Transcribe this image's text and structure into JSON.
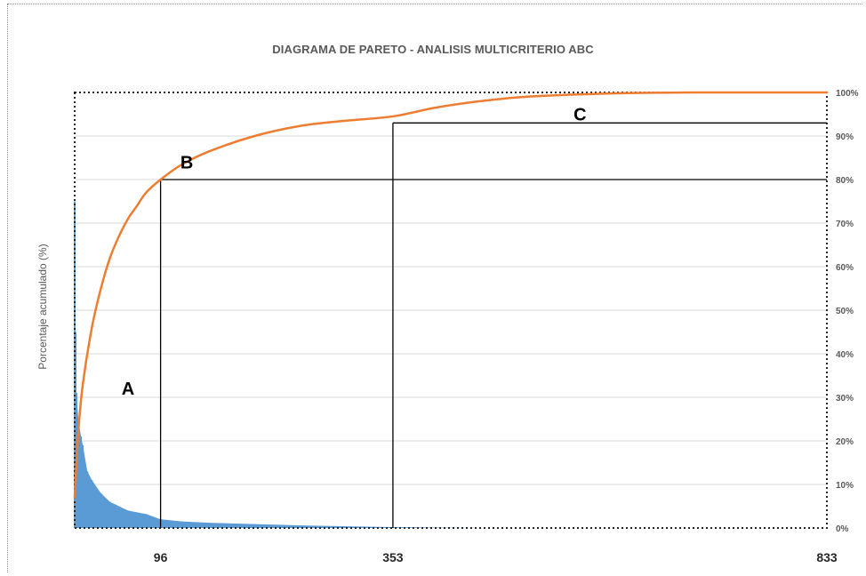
{
  "chart_data": {
    "type": "line",
    "title": "DIAGRAMA DE PARETO - ANALISIS MULTICRITERIO ABC",
    "ylabel": "Porcentaje acumulado (%)",
    "xlabel": "",
    "ylim": [
      0,
      100
    ],
    "xlim": [
      1,
      833
    ],
    "y_ticks": [
      "0%",
      "10%",
      "20%",
      "30%",
      "40%",
      "50%",
      "60%",
      "70%",
      "80%",
      "90%",
      "100%"
    ],
    "x_tick_labels": [
      {
        "x": 96,
        "label": "96"
      },
      {
        "x": 353,
        "label": "353"
      },
      {
        "x": 833,
        "label": "833"
      }
    ],
    "grid": true,
    "series": [
      {
        "type": "line",
        "color": "#ED7D31",
        "x": [
          1,
          5,
          10,
          20,
          30,
          40,
          50,
          60,
          70,
          80,
          96,
          120,
          150,
          200,
          250,
          300,
          353,
          400,
          450,
          500,
          600,
          700,
          833
        ],
        "values": [
          7,
          22,
          33,
          46,
          55,
          62,
          67,
          71,
          74,
          77,
          80,
          83.5,
          86.5,
          90,
          92.3,
          93.5,
          94.5,
          96.5,
          98,
          99,
          99.8,
          100,
          100
        ]
      },
      {
        "type": "bar",
        "color": "#5B9BD5",
        "x": [
          1,
          2,
          3,
          5,
          8,
          10,
          15,
          20,
          30,
          40,
          60,
          80,
          96,
          120,
          150,
          200,
          250,
          300,
          353,
          400,
          450
        ],
        "values": [
          75,
          45,
          31,
          25,
          21,
          19,
          13,
          11,
          8,
          6,
          4,
          3.2,
          2,
          1.5,
          1.2,
          0.9,
          0.6,
          0.4,
          0.2,
          0.1,
          0
        ]
      }
    ],
    "annotations": [
      {
        "label": "A",
        "x": 60,
        "y": 32
      },
      {
        "label": "B",
        "x": 125,
        "y": 84
      },
      {
        "label": "C",
        "x": 560,
        "y": 95
      },
      {
        "type": "vline",
        "x": 96,
        "y_to": 80
      },
      {
        "type": "vline",
        "x": 353,
        "y_to": 93
      },
      {
        "type": "hline",
        "y": 80,
        "x_from": 96
      },
      {
        "type": "hline",
        "y": 93,
        "x_from": 353
      }
    ]
  }
}
